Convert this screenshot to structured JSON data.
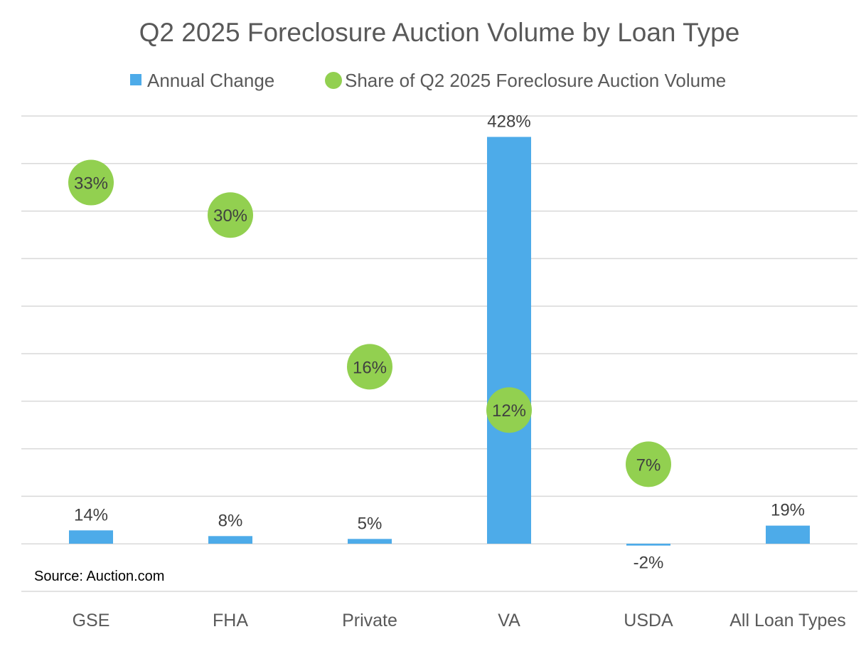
{
  "chart_data": {
    "type": "bar",
    "title": "Q2 2025 Foreclosure Auction Volume by Loan Type",
    "categories": [
      "GSE",
      "FHA",
      "Private",
      "VA",
      "USDA",
      "All Loan Types"
    ],
    "series": [
      {
        "name": "Annual Change",
        "type": "bar",
        "color": "#4dabe9",
        "values": [
          14,
          8,
          5,
          428,
          -2,
          19
        ],
        "labels": [
          "14%",
          "8%",
          "5%",
          "428%",
          "-2%",
          "19%"
        ]
      },
      {
        "name": "Share of Q2 2025 Foreclosure Auction Volume",
        "type": "scatter",
        "color": "#92d050",
        "values": [
          33,
          30,
          16,
          12,
          7,
          null
        ],
        "labels": [
          "33%",
          "30%",
          "16%",
          "12%",
          "7%",
          null
        ]
      }
    ],
    "legend_position": "top",
    "grid": true,
    "bar_axis_ylim": [
      -50,
      450
    ],
    "share_axis_ylim": [
      -5,
      40
    ],
    "source": "Source: Auction.com"
  }
}
